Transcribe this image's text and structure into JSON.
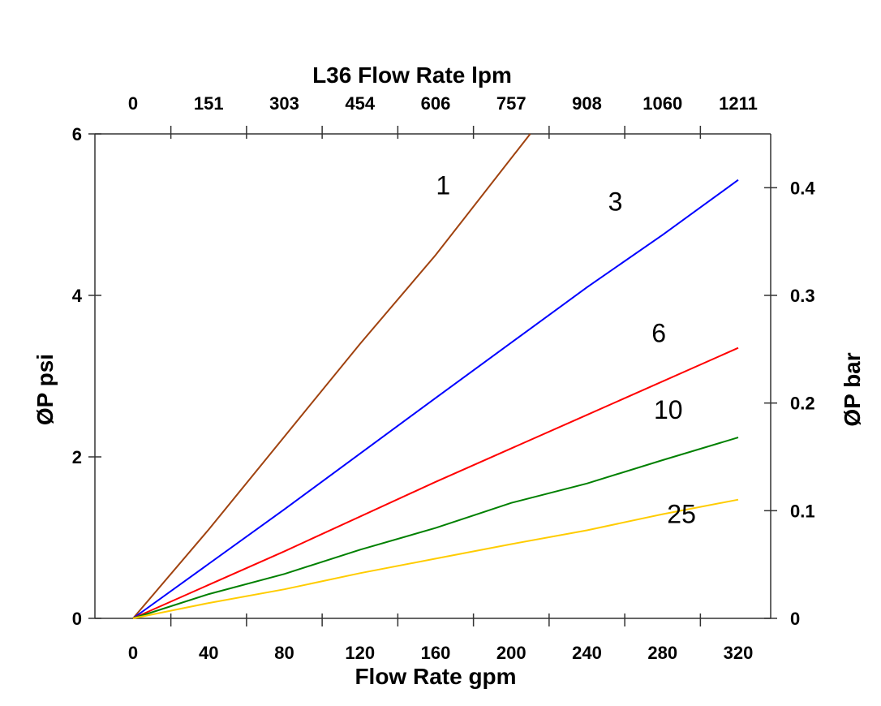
{
  "chart_data": {
    "type": "line",
    "title": "L36  Flow Rate lpm",
    "xlabel": "Flow Rate gpm",
    "ylabel": "ØP psi",
    "y2label": "ØP bar",
    "xlim": [
      -20,
      335
    ],
    "ylim": [
      0,
      6
    ],
    "y2lim": [
      0,
      0.45
    ],
    "x_ticks": [
      0,
      40,
      80,
      120,
      160,
      200,
      240,
      280,
      320
    ],
    "x_tick_labels": [
      "0",
      "40",
      "80",
      "120",
      "160",
      "200",
      "240",
      "280",
      "320"
    ],
    "top_tick_labels": [
      "0",
      "151",
      "303",
      "454",
      "606",
      "757",
      "908",
      "1060",
      "1211"
    ],
    "y_ticks": [
      0,
      2,
      4,
      6
    ],
    "y_tick_labels": [
      "0",
      "2",
      "4",
      "6"
    ],
    "y2_ticks": [
      0,
      0.1,
      0.2,
      0.3,
      0.4
    ],
    "y2_tick_labels": [
      "0",
      "0.1",
      "0.2",
      "0.3",
      "0.4"
    ],
    "grid": false,
    "series": [
      {
        "name": "1",
        "color": "#a0420f",
        "x": [
          0,
          40,
          80,
          120,
          160,
          210
        ],
        "y": [
          0,
          1.1,
          2.25,
          3.4,
          4.5,
          6.0
        ],
        "label_at": [
          164,
          5.25
        ]
      },
      {
        "name": "3",
        "color": "#0000ff",
        "x": [
          0,
          80,
          160,
          240,
          280,
          320
        ],
        "y": [
          0,
          1.35,
          2.73,
          4.1,
          4.75,
          5.43
        ],
        "label_at": [
          255,
          5.05
        ]
      },
      {
        "name": "6",
        "color": "#ff0000",
        "x": [
          0,
          80,
          160,
          240,
          320
        ],
        "y": [
          0,
          0.83,
          1.69,
          2.52,
          3.35
        ],
        "label_at": [
          278,
          3.42
        ]
      },
      {
        "name": "10",
        "color": "#008000",
        "x": [
          0,
          40,
          80,
          120,
          160,
          200,
          240,
          280,
          320
        ],
        "y": [
          0,
          0.3,
          0.55,
          0.85,
          1.12,
          1.43,
          1.67,
          1.96,
          2.24
        ],
        "label_at": [
          283,
          2.47
        ]
      },
      {
        "name": "25",
        "color": "#ffcc00",
        "x": [
          0,
          40,
          80,
          120,
          160,
          200,
          240,
          280,
          320
        ],
        "y": [
          0,
          0.19,
          0.36,
          0.56,
          0.74,
          0.92,
          1.09,
          1.29,
          1.47
        ],
        "label_at": [
          290,
          1.18
        ]
      }
    ]
  }
}
